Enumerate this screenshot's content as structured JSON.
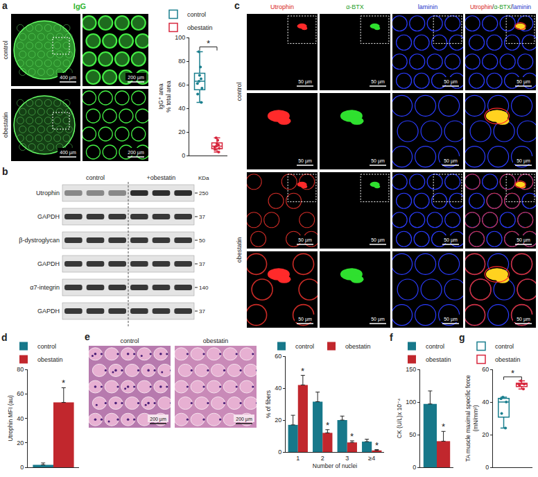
{
  "chart_data": [
    {
      "type": "box",
      "ylabel": [
        "IgG⁺ area",
        "% total area"
      ],
      "series": [
        {
          "name": "control",
          "color": "#1b7f8e",
          "values": [
            45,
            52,
            57,
            61,
            63,
            65,
            68,
            75,
            88
          ]
        },
        {
          "name": "obestatin",
          "color": "#d7263d",
          "values": [
            3,
            5,
            6,
            7,
            8,
            9,
            10,
            13,
            15
          ]
        }
      ],
      "ylim": [
        0,
        100
      ],
      "yticks": [
        0,
        20,
        40,
        60,
        80,
        100
      ],
      "legend": "top",
      "tick_labels": "y",
      "annotations": [
        {
          "text": "*",
          "from": "control",
          "to": "obestatin"
        }
      ]
    },
    {
      "panel": "d",
      "type": "bar",
      "ylabel": [
        "Utrophin MFI (au)"
      ],
      "categories": [
        null
      ],
      "series": [
        {
          "name": "control",
          "color": "#17788a",
          "values": [
            2
          ],
          "errors": [
            1.5
          ]
        },
        {
          "name": "obestatin",
          "color": "#c1272d",
          "values": [
            53
          ],
          "errors": [
            12
          ]
        }
      ],
      "ylim": [
        0,
        80
      ],
      "yticks": [
        0,
        20,
        40,
        60,
        80
      ],
      "legend": "top",
      "tick_labels": "y",
      "annotations": [
        {
          "text": "*",
          "series": "obestatin"
        }
      ]
    },
    {
      "type": "bar",
      "xlabel": "Number of nuclei",
      "ylabel": [
        "% of fibers"
      ],
      "categories": [
        "1",
        "2",
        "3",
        "≥4"
      ],
      "series": [
        {
          "name": "control",
          "color": "#17788a",
          "values": [
            17,
            31.5,
            20,
            6.5
          ],
          "errors": [
            6,
            6,
            2.5,
            1.5
          ]
        },
        {
          "name": "obestatin",
          "color": "#c1272d",
          "values": [
            42,
            12,
            6,
            1
          ],
          "errors": [
            6,
            2,
            1,
            0.5
          ]
        }
      ],
      "ylim": [
        0,
        60
      ],
      "yticks": [
        0,
        20,
        40,
        60
      ],
      "legend": "top",
      "annotations": [
        {
          "text": "*",
          "series": "obestatin"
        }
      ]
    },
    {
      "panel": "f",
      "type": "bar",
      "ylabel": [
        "CK (U/L)x 10⁻⁴"
      ],
      "categories": [
        null
      ],
      "series": [
        {
          "name": "control",
          "color": "#17788a",
          "values": [
            97
          ],
          "errors": [
            20
          ]
        },
        {
          "name": "obestatin",
          "color": "#c1272d",
          "values": [
            40
          ],
          "errors": [
            15
          ]
        }
      ],
      "ylim": [
        0,
        150
      ],
      "yticks": [
        0,
        50,
        100,
        150
      ],
      "legend": "top",
      "tick_labels": "y",
      "annotations": [
        {
          "text": "*",
          "series": "obestatin"
        }
      ]
    },
    {
      "panel": "g",
      "type": "box",
      "ylabel": [
        "TA muscle maximal specific force",
        "(mN/mm²)"
      ],
      "series": [
        {
          "name": "control",
          "color": "#1b7f8e",
          "values": [
            24,
            33,
            40,
            42,
            43
          ]
        },
        {
          "name": "obestatin",
          "color": "#d7263d",
          "values": [
            48,
            50,
            51,
            51,
            53
          ]
        }
      ],
      "ylim": [
        0,
        60
      ],
      "yticks": [
        0,
        20,
        40,
        60
      ],
      "legend": "top",
      "tick_labels": "y",
      "annotations": [
        {
          "text": "*",
          "from": "control",
          "to": "obestatin"
        }
      ]
    }
  ],
  "images": {
    "a": {
      "panel": "a",
      "title": "IgG",
      "title_color": "#2fb52f",
      "rows": [
        "control",
        "obestatin"
      ],
      "scale_bars": [
        "400 µm",
        "200 µm"
      ]
    },
    "b": {
      "panel": "b",
      "groups": [
        "control",
        "+obestatin"
      ],
      "unit": "KDa",
      "rows": [
        {
          "label": "Utrophin",
          "mw": 250
        },
        {
          "label": "GAPDH",
          "mw": 37
        },
        {
          "label": "β-dystroglycan",
          "mw": 50
        },
        {
          "label": "GAPDH",
          "mw": 37
        },
        {
          "label": "α7-integrin",
          "mw": 140
        },
        {
          "label": "GAPDH",
          "mw": 37
        }
      ]
    },
    "c": {
      "panel": "c",
      "columns": [
        {
          "text": "Utrophin",
          "color": "#d8231c"
        },
        {
          "text": "α-BTX",
          "color": "#1f9e1f"
        },
        {
          "text": "laminin",
          "color": "#2233cc"
        },
        {
          "parts": [
            {
              "text": "Utrophin",
              "color": "#d8231c"
            },
            {
              "text": "/",
              "color": "#222222"
            },
            {
              "text": "α-BTX",
              "color": "#1f9e1f"
            },
            {
              "text": "/",
              "color": "#222222"
            },
            {
              "text": "laminin",
              "color": "#2233cc"
            }
          ]
        }
      ],
      "rows": [
        "control",
        "obestatin"
      ],
      "scale_bar": "50 µm"
    },
    "e": {
      "panel": "e",
      "columns": [
        "control",
        "obestatin"
      ],
      "scale_bar": "200 µm"
    }
  }
}
